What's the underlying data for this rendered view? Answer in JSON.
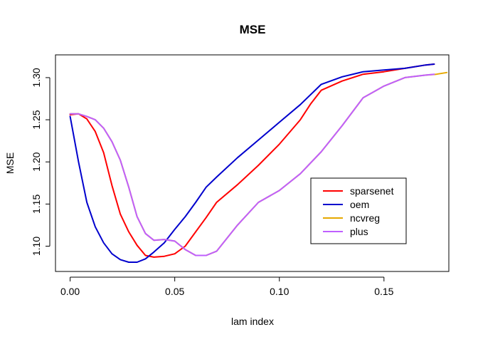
{
  "chart_data": {
    "type": "line",
    "title": "MSE",
    "xlabel": "lam index",
    "ylabel": "MSE",
    "xlim": [
      -0.007,
      0.181
    ],
    "ylim": [
      1.07,
      1.327
    ],
    "xticks": [
      0.0,
      0.05,
      0.1,
      0.15
    ],
    "xtick_labels": [
      "0.00",
      "0.05",
      "0.10",
      "0.15"
    ],
    "yticks": [
      1.1,
      1.15,
      1.2,
      1.25,
      1.3
    ],
    "ytick_labels": [
      "1.10",
      "1.15",
      "1.20",
      "1.25",
      "1.30"
    ],
    "grid": false,
    "legend_position": "right",
    "series": [
      {
        "name": "sparsenet",
        "color": "#ff0000",
        "points": [
          [
            0.0,
            1.256
          ],
          [
            0.004,
            1.257
          ],
          [
            0.008,
            1.251
          ],
          [
            0.012,
            1.236
          ],
          [
            0.016,
            1.211
          ],
          [
            0.02,
            1.172
          ],
          [
            0.024,
            1.138
          ],
          [
            0.028,
            1.117
          ],
          [
            0.032,
            1.101
          ],
          [
            0.036,
            1.089
          ],
          [
            0.04,
            1.087
          ],
          [
            0.045,
            1.088
          ],
          [
            0.05,
            1.091
          ],
          [
            0.055,
            1.1
          ],
          [
            0.06,
            1.117
          ],
          [
            0.065,
            1.134
          ],
          [
            0.07,
            1.152
          ],
          [
            0.08,
            1.173
          ],
          [
            0.09,
            1.196
          ],
          [
            0.1,
            1.221
          ],
          [
            0.11,
            1.25
          ],
          [
            0.115,
            1.269
          ],
          [
            0.12,
            1.285
          ],
          [
            0.13,
            1.296
          ],
          [
            0.14,
            1.304
          ],
          [
            0.15,
            1.307
          ],
          [
            0.16,
            1.311
          ],
          [
            0.17,
            1.315
          ],
          [
            0.174,
            1.316
          ]
        ]
      },
      {
        "name": "oem",
        "color": "#0000cd",
        "points": [
          [
            0.0,
            1.254
          ],
          [
            0.004,
            1.2
          ],
          [
            0.008,
            1.152
          ],
          [
            0.012,
            1.123
          ],
          [
            0.016,
            1.104
          ],
          [
            0.02,
            1.091
          ],
          [
            0.024,
            1.084
          ],
          [
            0.028,
            1.081
          ],
          [
            0.032,
            1.081
          ],
          [
            0.036,
            1.085
          ],
          [
            0.04,
            1.093
          ],
          [
            0.045,
            1.104
          ],
          [
            0.05,
            1.12
          ],
          [
            0.055,
            1.135
          ],
          [
            0.06,
            1.152
          ],
          [
            0.065,
            1.17
          ],
          [
            0.07,
            1.182
          ],
          [
            0.08,
            1.205
          ],
          [
            0.09,
            1.226
          ],
          [
            0.1,
            1.247
          ],
          [
            0.11,
            1.268
          ],
          [
            0.12,
            1.292
          ],
          [
            0.13,
            1.301
          ],
          [
            0.14,
            1.307
          ],
          [
            0.15,
            1.309
          ],
          [
            0.16,
            1.311
          ],
          [
            0.17,
            1.315
          ],
          [
            0.174,
            1.316
          ]
        ]
      },
      {
        "name": "ncvreg",
        "color": "#e6a800",
        "points": [
          [
            0.0,
            1.257
          ],
          [
            0.004,
            1.257
          ],
          [
            0.008,
            1.254
          ],
          [
            0.012,
            1.25
          ],
          [
            0.016,
            1.24
          ],
          [
            0.02,
            1.224
          ],
          [
            0.024,
            1.202
          ],
          [
            0.028,
            1.17
          ],
          [
            0.032,
            1.135
          ],
          [
            0.036,
            1.115
          ],
          [
            0.04,
            1.107
          ],
          [
            0.045,
            1.108
          ],
          [
            0.05,
            1.106
          ],
          [
            0.055,
            1.096
          ],
          [
            0.06,
            1.089
          ],
          [
            0.065,
            1.089
          ],
          [
            0.07,
            1.094
          ],
          [
            0.08,
            1.125
          ],
          [
            0.09,
            1.152
          ],
          [
            0.1,
            1.166
          ],
          [
            0.11,
            1.186
          ],
          [
            0.12,
            1.212
          ],
          [
            0.13,
            1.243
          ],
          [
            0.14,
            1.276
          ],
          [
            0.15,
            1.29
          ],
          [
            0.16,
            1.3
          ],
          [
            0.17,
            1.303
          ],
          [
            0.175,
            1.304
          ],
          [
            0.18,
            1.306
          ]
        ]
      },
      {
        "name": "plus",
        "color": "#bf5fff",
        "points": [
          [
            0.0,
            1.257
          ],
          [
            0.004,
            1.257
          ],
          [
            0.008,
            1.254
          ],
          [
            0.012,
            1.25
          ],
          [
            0.016,
            1.24
          ],
          [
            0.02,
            1.224
          ],
          [
            0.024,
            1.202
          ],
          [
            0.028,
            1.17
          ],
          [
            0.032,
            1.135
          ],
          [
            0.036,
            1.115
          ],
          [
            0.04,
            1.107
          ],
          [
            0.045,
            1.108
          ],
          [
            0.05,
            1.106
          ],
          [
            0.055,
            1.096
          ],
          [
            0.06,
            1.089
          ],
          [
            0.065,
            1.089
          ],
          [
            0.07,
            1.094
          ],
          [
            0.08,
            1.125
          ],
          [
            0.09,
            1.152
          ],
          [
            0.1,
            1.166
          ],
          [
            0.11,
            1.186
          ],
          [
            0.12,
            1.212
          ],
          [
            0.13,
            1.243
          ],
          [
            0.14,
            1.276
          ],
          [
            0.15,
            1.29
          ],
          [
            0.16,
            1.3
          ],
          [
            0.17,
            1.303
          ],
          [
            0.174,
            1.304
          ]
        ]
      }
    ]
  }
}
